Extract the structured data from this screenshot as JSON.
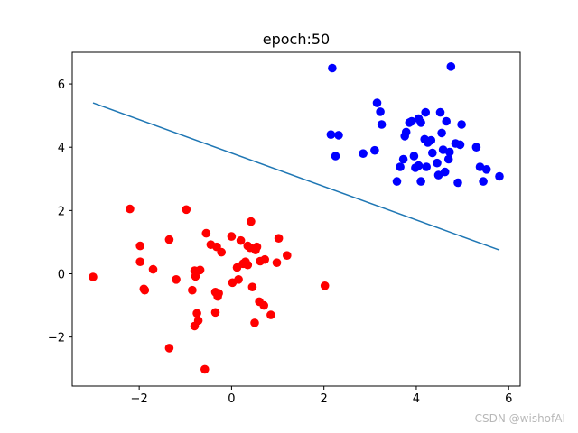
{
  "chart_data": {
    "type": "scatter",
    "title": "epoch:50",
    "xlim": [
      -3.45,
      6.25
    ],
    "ylim": [
      -3.55,
      7.0
    ],
    "xticks": [
      -2,
      0,
      2,
      4,
      6
    ],
    "yticks": [
      -2,
      0,
      2,
      4,
      6
    ],
    "xtick_labels": [
      "−2",
      "0",
      "2",
      "4",
      "6"
    ],
    "ytick_labels": [
      "−2",
      "0",
      "2",
      "4",
      "6"
    ],
    "grid": false,
    "series": [
      {
        "color": "#ff0000",
        "points": [
          [
            -3.0,
            -0.1
          ],
          [
            -2.2,
            2.05
          ],
          [
            -1.98,
            0.88
          ],
          [
            -1.98,
            0.38
          ],
          [
            -1.9,
            -0.48
          ],
          [
            -1.88,
            -0.52
          ],
          [
            -1.7,
            0.14
          ],
          [
            -1.35,
            1.08
          ],
          [
            -1.35,
            -2.35
          ],
          [
            -1.2,
            -0.18
          ],
          [
            -0.98,
            2.03
          ],
          [
            -0.85,
            -0.52
          ],
          [
            -0.8,
            0.1
          ],
          [
            -0.8,
            -1.65
          ],
          [
            -0.78,
            -0.08
          ],
          [
            -0.75,
            -1.25
          ],
          [
            -0.72,
            -1.48
          ],
          [
            -0.68,
            0.12
          ],
          [
            -0.58,
            -3.02
          ],
          [
            -0.55,
            1.28
          ],
          [
            -0.45,
            0.92
          ],
          [
            -0.35,
            -0.58
          ],
          [
            -0.35,
            -1.22
          ],
          [
            -0.32,
            0.85
          ],
          [
            -0.3,
            -0.72
          ],
          [
            -0.28,
            -0.62
          ],
          [
            -0.22,
            0.68
          ],
          [
            0.0,
            1.18
          ],
          [
            0.02,
            -0.28
          ],
          [
            0.12,
            0.2
          ],
          [
            0.15,
            -0.18
          ],
          [
            0.2,
            1.05
          ],
          [
            0.25,
            0.32
          ],
          [
            0.3,
            0.38
          ],
          [
            0.35,
            0.28
          ],
          [
            0.35,
            0.88
          ],
          [
            0.4,
            0.82
          ],
          [
            0.42,
            1.65
          ],
          [
            0.45,
            -0.42
          ],
          [
            0.5,
            -1.55
          ],
          [
            0.52,
            0.75
          ],
          [
            0.55,
            0.85
          ],
          [
            0.6,
            -0.88
          ],
          [
            0.62,
            0.4
          ],
          [
            0.7,
            -1.0
          ],
          [
            0.72,
            0.45
          ],
          [
            0.85,
            -1.3
          ],
          [
            0.98,
            0.35
          ],
          [
            1.02,
            1.12
          ],
          [
            1.2,
            0.58
          ],
          [
            2.02,
            -0.38
          ]
        ]
      },
      {
        "color": "#0000ff",
        "points": [
          [
            2.15,
            4.4
          ],
          [
            2.18,
            6.5
          ],
          [
            2.25,
            3.72
          ],
          [
            2.32,
            4.38
          ],
          [
            2.85,
            3.8
          ],
          [
            3.1,
            3.9
          ],
          [
            3.15,
            5.4
          ],
          [
            3.22,
            5.12
          ],
          [
            3.25,
            4.72
          ],
          [
            3.58,
            2.92
          ],
          [
            3.65,
            3.38
          ],
          [
            3.72,
            3.62
          ],
          [
            3.75,
            4.35
          ],
          [
            3.78,
            4.48
          ],
          [
            3.85,
            4.78
          ],
          [
            3.9,
            4.82
          ],
          [
            3.95,
            3.72
          ],
          [
            3.98,
            3.35
          ],
          [
            4.05,
            4.9
          ],
          [
            4.05,
            3.42
          ],
          [
            4.1,
            4.78
          ],
          [
            4.1,
            2.92
          ],
          [
            4.18,
            4.25
          ],
          [
            4.2,
            5.1
          ],
          [
            4.22,
            3.38
          ],
          [
            4.25,
            4.15
          ],
          [
            4.32,
            4.22
          ],
          [
            4.35,
            3.82
          ],
          [
            4.45,
            3.5
          ],
          [
            4.48,
            3.12
          ],
          [
            4.52,
            5.1
          ],
          [
            4.55,
            4.45
          ],
          [
            4.58,
            3.92
          ],
          [
            4.62,
            3.22
          ],
          [
            4.65,
            4.82
          ],
          [
            4.7,
            3.62
          ],
          [
            4.72,
            3.85
          ],
          [
            4.75,
            6.55
          ],
          [
            4.85,
            4.12
          ],
          [
            4.9,
            2.88
          ],
          [
            4.95,
            4.08
          ],
          [
            4.98,
            4.72
          ],
          [
            5.3,
            4.0
          ],
          [
            5.38,
            3.38
          ],
          [
            5.45,
            2.92
          ],
          [
            5.52,
            3.3
          ],
          [
            5.8,
            3.08
          ]
        ]
      }
    ],
    "line": {
      "color": "#1f77b4",
      "x": [
        -3.0,
        5.8
      ],
      "y": [
        5.4,
        0.75
      ]
    }
  },
  "watermark": "CSDN @wishofAI"
}
